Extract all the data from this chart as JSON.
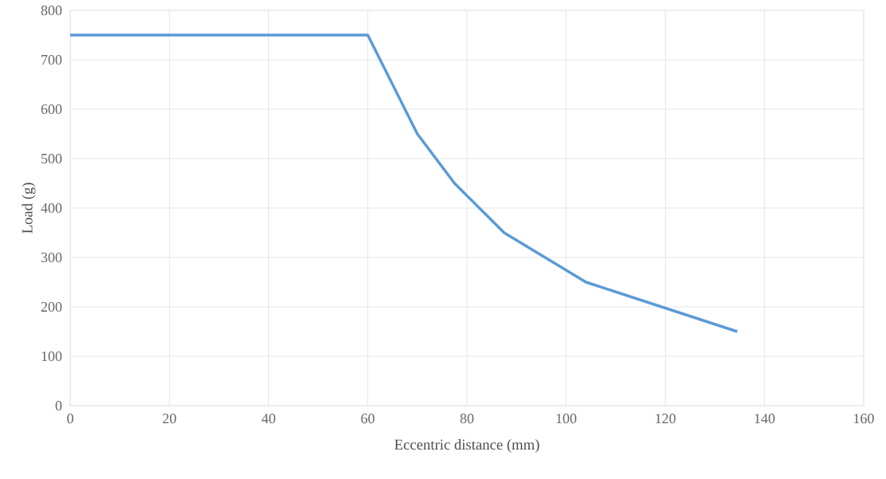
{
  "chart_data": {
    "type": "line",
    "xlabel": "Eccentric distance (mm)",
    "ylabel": "Load (g)",
    "x": [
      0,
      60,
      65,
      70,
      77.5,
      87.5,
      104,
      134.5
    ],
    "series": [
      {
        "color": "#5b9bd5",
        "values": [
          750,
          750,
          650,
          550,
          450,
          350,
          250,
          150
        ]
      }
    ],
    "xlim": [
      0,
      160
    ],
    "xticks": [
      0,
      20,
      40,
      60,
      80,
      100,
      120,
      140,
      160
    ],
    "ylim": [
      0,
      800
    ],
    "yticks": [
      0,
      100,
      200,
      300,
      400,
      500,
      600,
      700,
      800
    ],
    "grid": true,
    "marker": "none",
    "line_style": "solid"
  }
}
